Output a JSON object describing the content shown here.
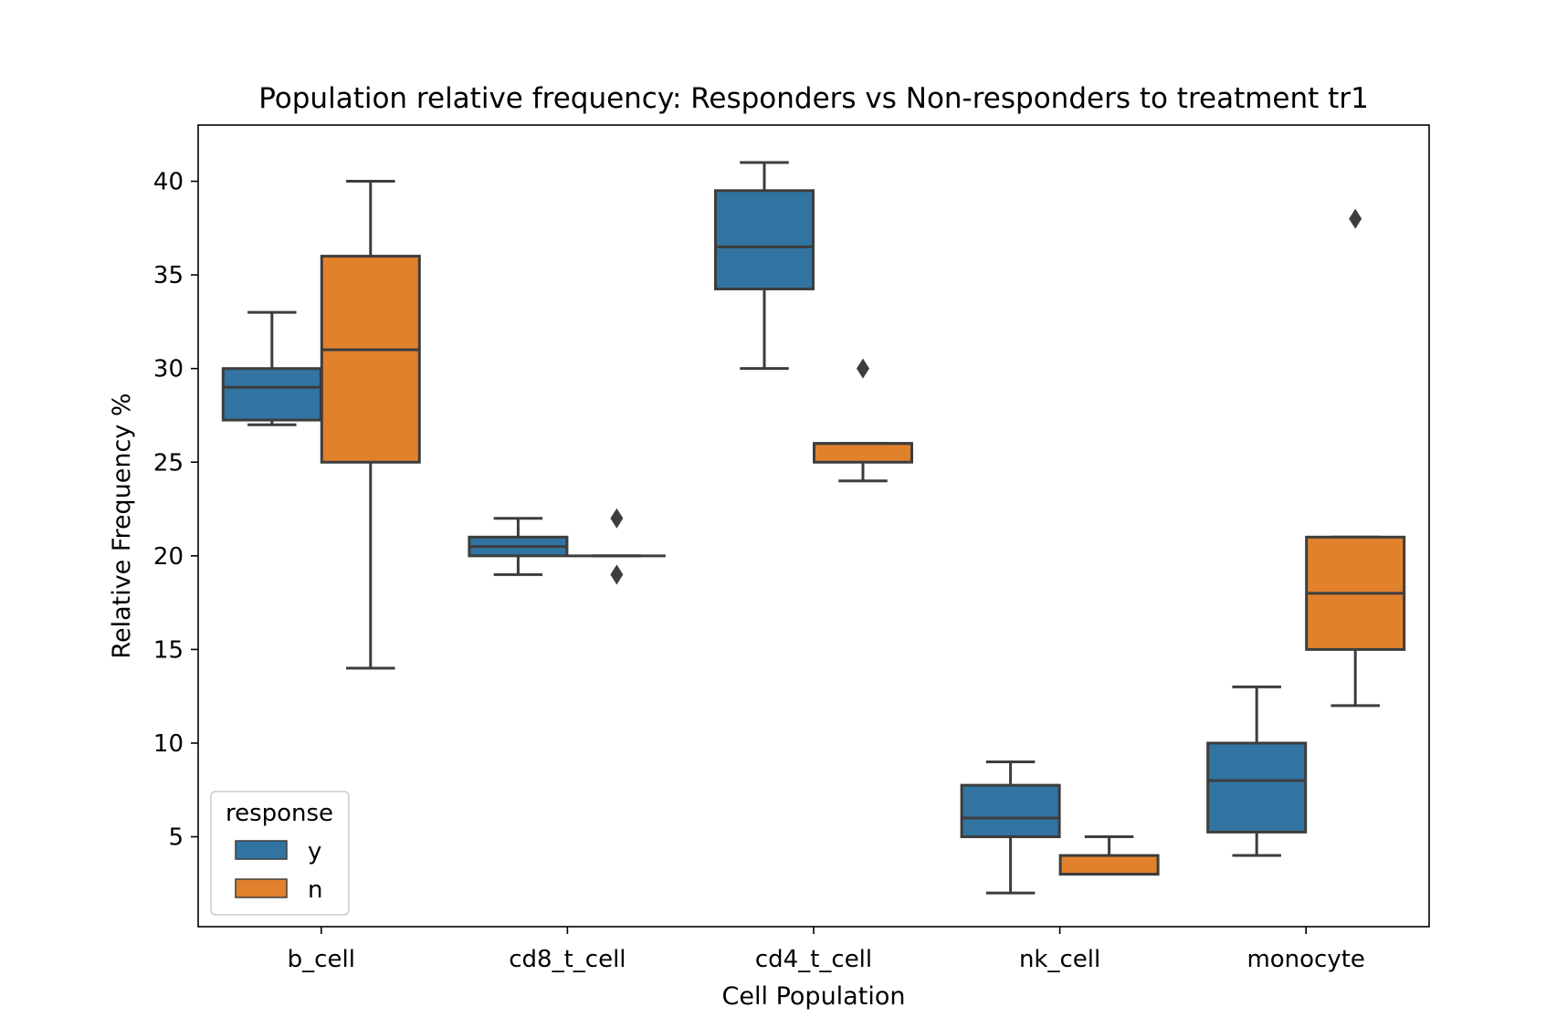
{
  "chart_data": {
    "type": "boxplot",
    "title": "Population relative frequency: Responders vs Non-responders to treatment tr1",
    "xlabel": "Cell Population",
    "ylabel": "Relative Frequency %",
    "ylim": [
      0.2,
      43
    ],
    "yticks": [
      5,
      10,
      15,
      20,
      25,
      30,
      35,
      40
    ],
    "categories": [
      "b_cell",
      "cd8_t_cell",
      "cd4_t_cell",
      "nk_cell",
      "monocyte"
    ],
    "legend": {
      "title": "response",
      "placement": "lower-left"
    },
    "series": [
      {
        "name": "y",
        "color": "#3274a1",
        "boxes": [
          {
            "whislo": 27,
            "q1": 27.25,
            "med": 29,
            "q3": 30,
            "whishi": 33,
            "fliers": []
          },
          {
            "whislo": 19,
            "q1": 20,
            "med": 20.5,
            "q3": 21,
            "whishi": 22,
            "fliers": []
          },
          {
            "whislo": 30,
            "q1": 34.25,
            "med": 36.5,
            "q3": 39.5,
            "whishi": 41,
            "fliers": []
          },
          {
            "whislo": 2,
            "q1": 5,
            "med": 6,
            "q3": 7.75,
            "whishi": 9,
            "fliers": []
          },
          {
            "whislo": 4,
            "q1": 5.25,
            "med": 8,
            "q3": 10,
            "whishi": 13,
            "fliers": []
          }
        ]
      },
      {
        "name": "n",
        "color": "#e1812c",
        "boxes": [
          {
            "whislo": 14,
            "q1": 25,
            "med": 31,
            "q3": 36,
            "whishi": 40,
            "fliers": []
          },
          {
            "whislo": 20,
            "q1": 20,
            "med": 20,
            "q3": 20,
            "whishi": 20,
            "fliers": [
              22,
              19
            ]
          },
          {
            "whislo": 24,
            "q1": 25,
            "med": 26,
            "q3": 26,
            "whishi": 26,
            "fliers": [
              30
            ]
          },
          {
            "whislo": 3,
            "q1": 3,
            "med": 3,
            "q3": 4,
            "whishi": 5,
            "fliers": []
          },
          {
            "whislo": 12,
            "q1": 15,
            "med": 18,
            "q3": 21,
            "whishi": 21,
            "fliers": [
              38
            ]
          }
        ]
      }
    ],
    "line_color": "#3d3d3d",
    "grid": false
  }
}
